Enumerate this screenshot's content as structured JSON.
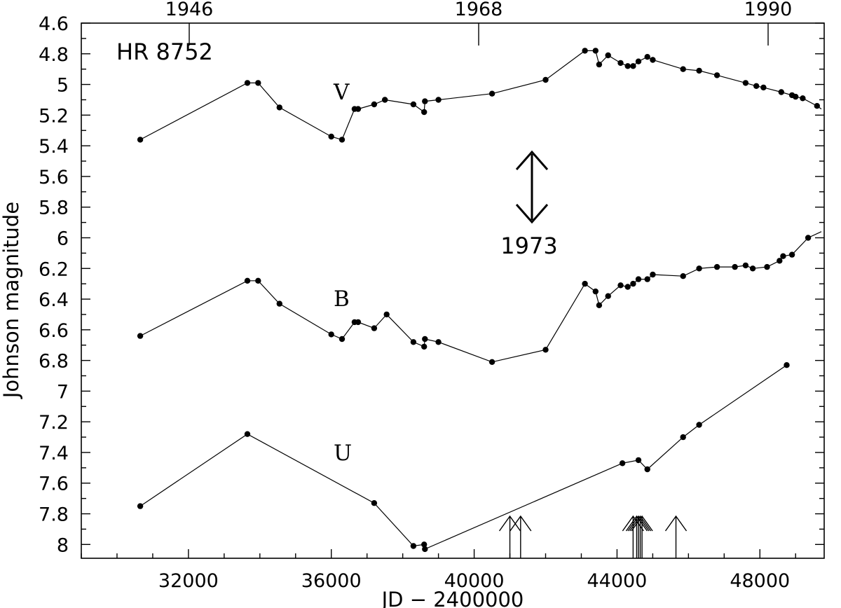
{
  "chart_data": {
    "type": "line",
    "title": "",
    "annotation_star": "HR 8752",
    "xlabel": "JD − 2400000",
    "ylabel": "Johnson magnitude",
    "xlim": [
      29000,
      49800
    ],
    "ylim": [
      8.09,
      4.6
    ],
    "y_inverted": true,
    "grid": false,
    "x_ticks": [
      "32000",
      "36000",
      "40000",
      "44000",
      "48000"
    ],
    "y_ticks": [
      "4.6",
      "4.8",
      "5",
      "5.2",
      "5.4",
      "5.6",
      "5.8",
      "6",
      "6.2",
      "6.4",
      "6.6",
      "6.8",
      "7",
      "7.2",
      "7.4",
      "7.6",
      "7.8",
      "8"
    ],
    "top_axis_years": [
      "1946",
      "1968",
      "1990"
    ],
    "series": [
      {
        "name": "V",
        "x": [
          30650,
          33650,
          33950,
          34550,
          36000,
          36300,
          36650,
          36750,
          37200,
          37500,
          38300,
          38600,
          38620,
          39000,
          40500,
          42000,
          43100,
          43400,
          43500,
          43750,
          44100,
          44300,
          44450,
          44600,
          44850,
          45000,
          45850,
          46300,
          46800,
          47600,
          47900,
          48100,
          48600,
          48900,
          49000,
          49200,
          49600
        ],
        "y": [
          5.36,
          4.99,
          4.99,
          5.15,
          5.34,
          5.36,
          5.16,
          5.16,
          5.13,
          5.1,
          5.13,
          5.18,
          5.11,
          5.1,
          5.06,
          4.97,
          4.78,
          4.78,
          4.87,
          4.81,
          4.86,
          4.88,
          4.88,
          4.85,
          4.82,
          4.84,
          4.9,
          4.91,
          4.94,
          4.99,
          5.01,
          5.02,
          5.05,
          5.07,
          5.08,
          5.09,
          5.14
        ]
      },
      {
        "name": "B",
        "x": [
          30650,
          33650,
          33950,
          34550,
          36000,
          36300,
          36650,
          36750,
          37200,
          37550,
          38300,
          38600,
          38620,
          39000,
          40500,
          42000,
          43100,
          43400,
          43500,
          43750,
          44100,
          44300,
          44450,
          44600,
          44850,
          45000,
          45850,
          46300,
          46800,
          47300,
          47600,
          47800,
          48200,
          48550,
          48650,
          48900,
          49350
        ],
        "y": [
          6.64,
          6.28,
          6.28,
          6.43,
          6.63,
          6.66,
          6.55,
          6.55,
          6.59,
          6.5,
          6.68,
          6.71,
          6.66,
          6.68,
          6.81,
          6.73,
          6.3,
          6.35,
          6.44,
          6.38,
          6.31,
          6.32,
          6.3,
          6.27,
          6.27,
          6.24,
          6.25,
          6.2,
          6.19,
          6.19,
          6.18,
          6.2,
          6.19,
          6.15,
          6.12,
          6.11,
          6.0
        ]
      },
      {
        "name": "U",
        "x": [
          30650,
          33650,
          37200,
          38300,
          38600,
          38620,
          44150,
          44600,
          44850,
          45850,
          46300,
          48750
        ],
        "y": [
          7.75,
          7.28,
          7.73,
          8.01,
          8.0,
          8.03,
          7.47,
          7.45,
          7.51,
          7.3,
          7.22,
          6.83
        ]
      }
    ],
    "epoch_arrows_jd": [
      41000,
      41300,
      44450,
      44550,
      44600,
      44650,
      44700,
      45650
    ],
    "marker_1973": {
      "label": "1973",
      "y_from": 5.45,
      "y_to": 5.9
    }
  }
}
